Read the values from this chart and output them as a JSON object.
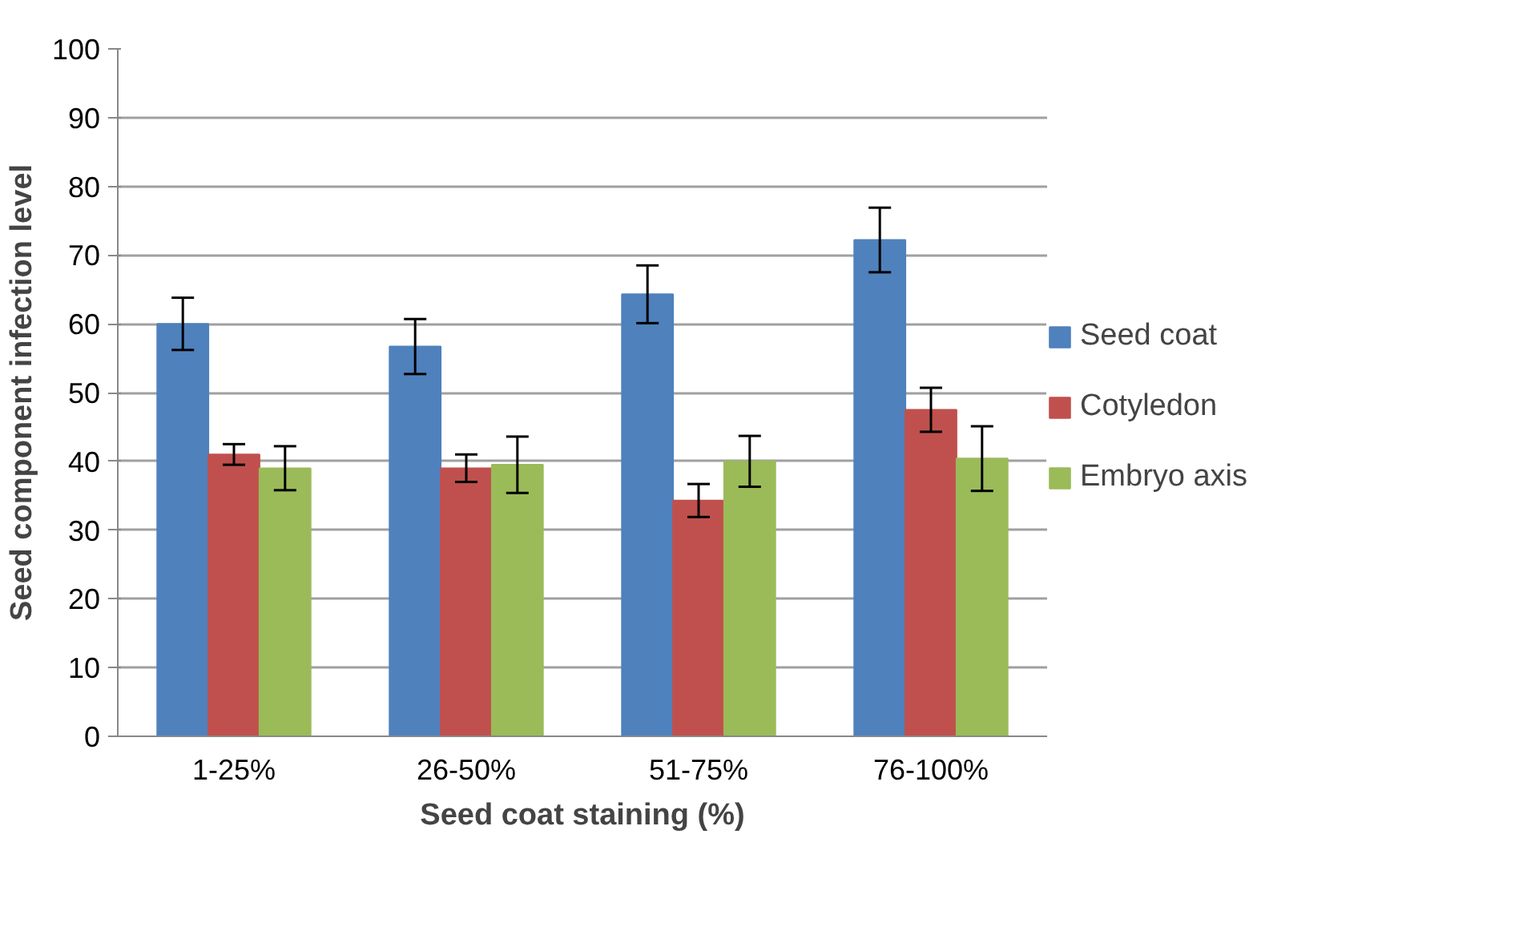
{
  "chart_data": {
    "type": "bar",
    "categories": [
      "1-25%",
      "26-50%",
      "51-75%",
      "76-100%"
    ],
    "xlabel": "Seed coat staining (%)",
    "ylabel": "Seed component infection level",
    "series": [
      {
        "name": "Seed coat",
        "color": "#4f81bd",
        "values": [
          60,
          56.7,
          64.3,
          72.2
        ],
        "errors": [
          3.8,
          4,
          4.2,
          4.7
        ]
      },
      {
        "name": "Cotyledon",
        "color": "#c0504d",
        "values": [
          41,
          39,
          34.3,
          47.5
        ],
        "errors": [
          1.5,
          2,
          2.4,
          3.2
        ]
      },
      {
        "name": "Embryo axis",
        "color": "#9bbb59",
        "values": [
          39,
          39.5,
          40,
          40.4
        ],
        "errors": [
          3.2,
          4.1,
          3.7,
          4.7
        ]
      }
    ],
    "ylim": [
      0,
      100
    ],
    "yticks": [
      0,
      10,
      20,
      30,
      40,
      50,
      60,
      70,
      80,
      90,
      100
    ],
    "grid": "y",
    "legend": "right"
  }
}
